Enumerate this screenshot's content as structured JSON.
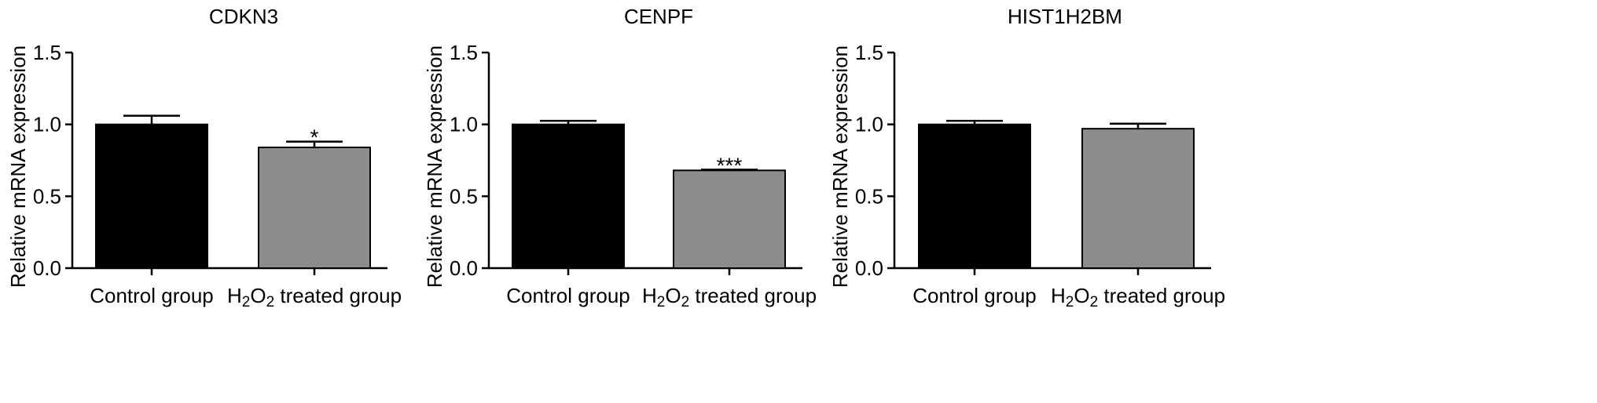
{
  "chart_data": [
    {
      "type": "bar",
      "title": "CDKN3",
      "ylabel": "Relative mRNA expression",
      "ylim": [
        0,
        1.5
      ],
      "yticks": [
        "0.0",
        "0.5",
        "1.0",
        "1.5"
      ],
      "categories": [
        "Control group",
        "H2O2 treated group"
      ],
      "category_labels": [
        {
          "parts": [
            {
              "t": "Control group",
              "sub": false
            }
          ]
        },
        {
          "parts": [
            {
              "t": "H",
              "sub": false
            },
            {
              "t": "2",
              "sub": true
            },
            {
              "t": "O",
              "sub": false
            },
            {
              "t": "2",
              "sub": true
            },
            {
              "t": " treated group",
              "sub": false
            }
          ]
        }
      ],
      "values": [
        1.0,
        0.84
      ],
      "errors": [
        0.06,
        0.04
      ],
      "annotations": [
        "",
        "*"
      ],
      "colors": [
        "#000000",
        "#8c8c8c"
      ]
    },
    {
      "type": "bar",
      "title": "CENPF",
      "ylabel": "Relative mRNA expression",
      "ylim": [
        0,
        1.5
      ],
      "yticks": [
        "0.0",
        "0.5",
        "1.0",
        "1.5"
      ],
      "categories": [
        "Control group",
        "H2O2 treated group"
      ],
      "category_labels": [
        {
          "parts": [
            {
              "t": "Control group",
              "sub": false
            }
          ]
        },
        {
          "parts": [
            {
              "t": "H",
              "sub": false
            },
            {
              "t": "2",
              "sub": true
            },
            {
              "t": "O",
              "sub": false
            },
            {
              "t": "2",
              "sub": true
            },
            {
              "t": " treated group",
              "sub": false
            }
          ]
        }
      ],
      "values": [
        1.0,
        0.68
      ],
      "errors": [
        0.025,
        0.005
      ],
      "annotations": [
        "",
        "***"
      ],
      "colors": [
        "#000000",
        "#8c8c8c"
      ]
    },
    {
      "type": "bar",
      "title": "HIST1H2BM",
      "ylabel": "Relative mRNA expression",
      "ylim": [
        0,
        1.5
      ],
      "yticks": [
        "0.0",
        "0.5",
        "1.0",
        "1.5"
      ],
      "categories": [
        "Control group",
        "H2O2 treated group"
      ],
      "category_labels": [
        {
          "parts": [
            {
              "t": "Control group",
              "sub": false
            }
          ]
        },
        {
          "parts": [
            {
              "t": "H",
              "sub": false
            },
            {
              "t": "2",
              "sub": true
            },
            {
              "t": "O",
              "sub": false
            },
            {
              "t": "2",
              "sub": true
            },
            {
              "t": " treated group",
              "sub": false
            }
          ]
        }
      ],
      "values": [
        1.0,
        0.97
      ],
      "errors": [
        0.025,
        0.035
      ],
      "annotations": [
        "",
        ""
      ],
      "colors": [
        "#000000",
        "#8c8c8c"
      ]
    }
  ]
}
